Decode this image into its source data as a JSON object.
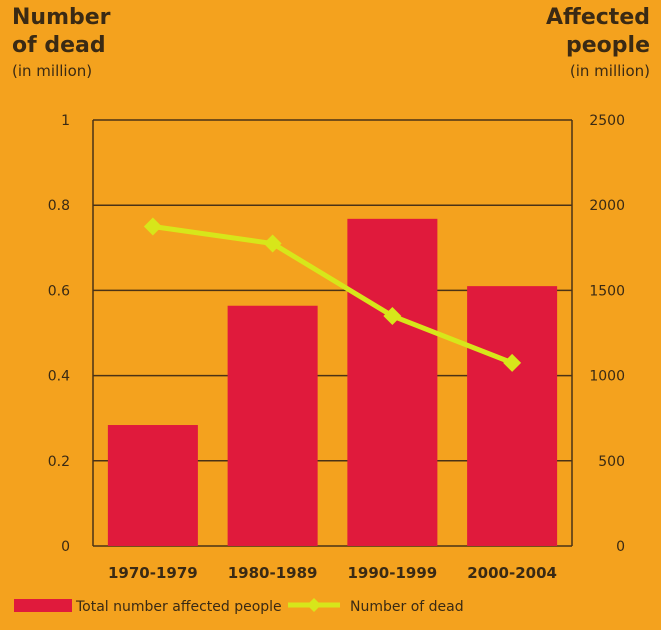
{
  "colors": {
    "background": "#f4a21e",
    "bar": "#e01a3c",
    "line": "#d7e61a",
    "gridline": "#4a3216",
    "text": "#3a2a14"
  },
  "chart_data": {
    "type": "bar",
    "categories": [
      "1970-1979",
      "1980-1989",
      "1990-1999",
      "2000-2004"
    ],
    "series": [
      {
        "name": "Total number affected people",
        "type": "bar",
        "axis": "right",
        "values": [
          710,
          1410,
          1920,
          1525
        ]
      },
      {
        "name": "Number of dead",
        "type": "line",
        "axis": "left",
        "values": [
          0.75,
          0.71,
          0.54,
          0.43
        ]
      }
    ],
    "left_axis": {
      "title_line1": "Number",
      "title_line2": "of dead",
      "unit": "(in million)",
      "ylim": [
        0,
        1
      ],
      "ticks": [
        "0",
        "0.2",
        "0.4",
        "0.6",
        "0.8",
        "1"
      ]
    },
    "right_axis": {
      "title_line1": "Affected",
      "title_line2": "people",
      "unit": "(in million)",
      "ylim": [
        0,
        2500
      ],
      "ticks": [
        "0",
        "500",
        "1000",
        "1500",
        "2000",
        "2500"
      ]
    },
    "grid": "horizontal",
    "legend_position": "bottom"
  }
}
